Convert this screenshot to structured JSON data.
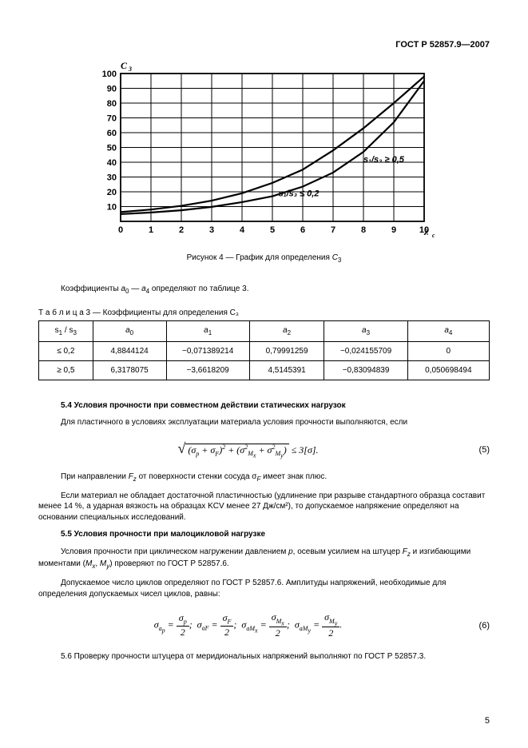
{
  "header": {
    "doc_number": "ГОСТ Р 52857.9—2007"
  },
  "chart": {
    "type": "line",
    "y_label": "C_3",
    "x_label": "λ_c",
    "x_ticks": [
      0,
      1,
      2,
      3,
      4,
      5,
      6,
      7,
      8,
      9,
      10
    ],
    "y_ticks": [
      0,
      10,
      20,
      30,
      40,
      50,
      60,
      70,
      80,
      90,
      100
    ],
    "xlim": [
      0,
      10
    ],
    "ylim": [
      0,
      100
    ],
    "background_color": "#ffffff",
    "grid_color": "#000000",
    "line_color": "#000000",
    "line_width": 2.2,
    "series": [
      {
        "name": "s1/s3 ≤ 0,2",
        "label": "s₁/s₃ ≤ 0,2",
        "label_pos": [
          5.2,
          17
        ],
        "points": [
          [
            0,
            4.9
          ],
          [
            1,
            6
          ],
          [
            2,
            7.5
          ],
          [
            3,
            9.8
          ],
          [
            4,
            13
          ],
          [
            5,
            17
          ],
          [
            6,
            23.5
          ],
          [
            7,
            33
          ],
          [
            8,
            47
          ],
          [
            9,
            67
          ],
          [
            10,
            95
          ]
        ]
      },
      {
        "name": "s1/s3 ≥ 0,5",
        "label": "s₁/s₃ ≥ 0,5",
        "label_pos": [
          8.0,
          40
        ],
        "points": [
          [
            0,
            6.3
          ],
          [
            1,
            8
          ],
          [
            2,
            10.5
          ],
          [
            3,
            14
          ],
          [
            4,
            19
          ],
          [
            5,
            26
          ],
          [
            6,
            35
          ],
          [
            7,
            48
          ],
          [
            8,
            63
          ],
          [
            9,
            80
          ],
          [
            10,
            98
          ]
        ]
      }
    ],
    "caption": "Рисунок 4 — График для определения C₃"
  },
  "para_coeffs": "Коэффициенты a₀ — a₄ определяют по таблице 3.",
  "table": {
    "caption": "Т а б л и ц а  3 — Коэффициенты для определения C₃",
    "headers": [
      "s₁ / s₃",
      "a₀",
      "a₁",
      "a₂",
      "a₃",
      "a₄"
    ],
    "rows": [
      [
        "≤ 0,2",
        "4,8844124",
        "−0,071389214",
        "0,79991259",
        "−0,024155709",
        "0"
      ],
      [
        "≥ 0,5",
        "6,3178075",
        "−3,6618209",
        "4,5145391",
        "−0,83094839",
        "0,050698494"
      ]
    ],
    "col_widths": [
      "80px",
      "100px",
      "110px",
      "100px",
      "110px",
      "110px"
    ]
  },
  "section_5_4": {
    "title": "5.4 Условия прочности при совместном действии статических нагрузок",
    "line1": "Для пластичного в условиях эксплуатации материала условия прочности выполняются, если",
    "equation": "√( (σ_p + σ_F)² + (σ²_Mx + σ²_My) ) ≤ 3[σ].",
    "eq_num": "(5)",
    "line2a": "При направлении F_z от поверхности стенки сосуда σ_F имеет знак плюс.",
    "line2b": "Если материал не обладает достаточной пластичностью (удлинение при разрыве стандартного образца составит менее 14 %, а ударная вязкость на образцах KCV менее 27 Дж/см²), то допускаемое напряжение определяют на основании специальных исследований."
  },
  "section_5_5": {
    "title": "5.5 Условия прочности при малоцикловой нагрузке",
    "line1": "Условия прочности при циклическом нагружении давлением p, осевым усилием на штуцер F_z и изгибающими моментами (M_x, M_y) проверяют по ГОСТ Р 52857.6.",
    "line2": "Допускаемое число циклов определяют по ГОСТ Р 52857.6. Амплитуды напряжений, необходимые для определения допускаемых чисел циклов, равны:",
    "equation": "σ_ap = σ_p / 2; σ_aF = σ_F / 2; σ_aMx = σ_Mx / 2; σ_aMy = σ_My / 2.",
    "eq_num": "(6)"
  },
  "section_5_6": "5.6 Проверку прочности штуцера от меридиональных напряжений выполняют по ГОСТ Р 52857.3.",
  "page_number": "5"
}
